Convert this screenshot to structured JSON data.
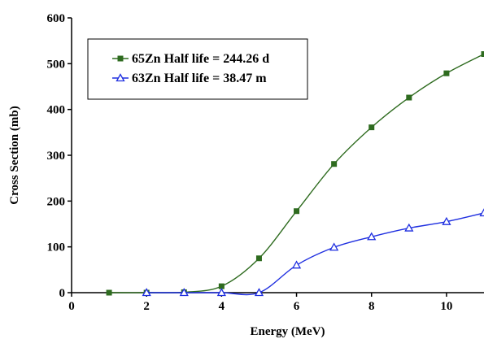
{
  "chart_data": {
    "type": "line",
    "title": "",
    "xlabel": "Energy (MeV)",
    "ylabel": "Cross Section (mb)",
    "xlim": [
      0,
      11
    ],
    "ylim": [
      0,
      600
    ],
    "xticks": [
      "0",
      "2",
      "4",
      "6",
      "8",
      "10"
    ],
    "yticks": [
      "0",
      "100",
      "200",
      "300",
      "400",
      "500",
      "600"
    ],
    "grid": false,
    "legend_position": "top-left",
    "series": [
      {
        "name": "65Zn Half life = 244.26 d",
        "color": "#2e6b1f",
        "marker": "square",
        "x": [
          1,
          2,
          3,
          4,
          5,
          6,
          7,
          8,
          9,
          10,
          11
        ],
        "y": [
          0,
          0,
          1,
          14,
          75,
          178,
          281,
          361,
          426,
          479,
          521
        ]
      },
      {
        "name": "63Zn Half life = 38.47 m",
        "color": "#1f2fe0",
        "marker": "triangle",
        "x": [
          2,
          3,
          4,
          5,
          6,
          7,
          8,
          9,
          10,
          11
        ],
        "y": [
          0,
          0,
          0,
          0,
          60,
          99,
          122,
          141,
          155,
          174
        ]
      }
    ]
  }
}
